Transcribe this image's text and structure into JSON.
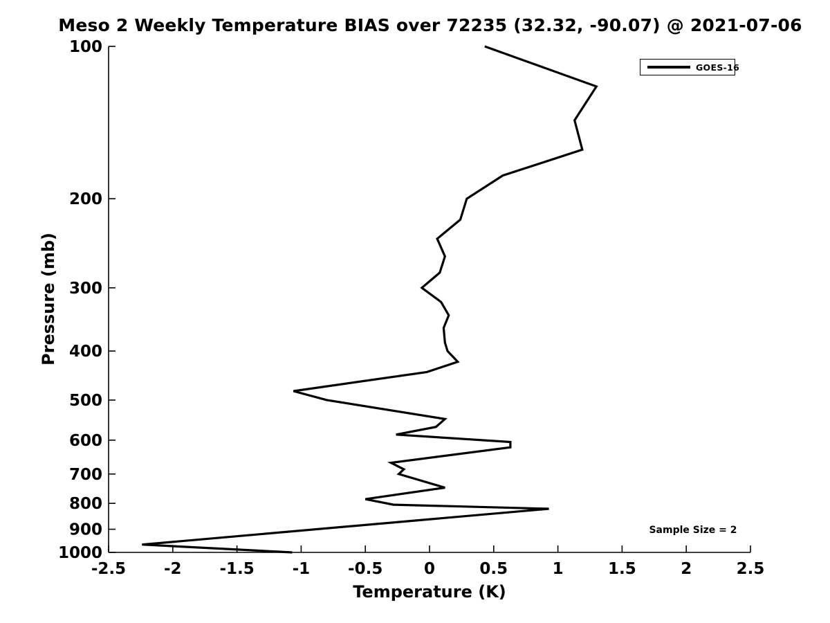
{
  "figure": {
    "background_color": "#ffffff",
    "text_color": "#000000"
  },
  "chart_data": {
    "type": "line",
    "title": "Meso 2 Weekly Temperature BIAS over 72235 (32.32, -90.07) @ 2021-07-06",
    "xlabel": "Temperature (K)",
    "ylabel": "Pressure (mb)",
    "xlim": [
      -2.5,
      2.5
    ],
    "ylim": [
      100,
      1000
    ],
    "y_scale": "log",
    "y_orientation": "inverted (pressure increases downward)",
    "grid": false,
    "axis_color": "#000000",
    "line_color": "#000000",
    "x_ticks": [
      -2.5,
      -2,
      -1.5,
      -1,
      -0.5,
      0,
      0.5,
      1,
      1.5,
      2,
      2.5
    ],
    "x_tick_labels": [
      "-2.5",
      "-2",
      "-1.5",
      "-1",
      "-0.5",
      "0",
      "0.5",
      "1",
      "1.5",
      "2",
      "2.5"
    ],
    "y_ticks": [
      100,
      200,
      300,
      400,
      500,
      600,
      700,
      800,
      900,
      1000
    ],
    "y_tick_labels": [
      "100",
      "200",
      "300",
      "400",
      "500",
      "600",
      "700",
      "800",
      "900",
      "1000"
    ],
    "legend": {
      "position": "top-right",
      "entries": [
        {
          "label": "GOES-16",
          "color": "#000000"
        }
      ]
    },
    "annotation": "Sample Size = 2",
    "series": [
      {
        "name": "GOES-16",
        "color": "#000000",
        "points_format": [
          "temperature_bias_K",
          "pressure_mb"
        ],
        "points": [
          [
            0.43,
            100
          ],
          [
            1.3,
            120
          ],
          [
            1.13,
            140
          ],
          [
            1.19,
            160
          ],
          [
            0.57,
            180
          ],
          [
            0.29,
            200
          ],
          [
            0.24,
            220
          ],
          [
            0.06,
            240
          ],
          [
            0.12,
            260
          ],
          [
            0.08,
            280
          ],
          [
            -0.06,
            300
          ],
          [
            0.09,
            320
          ],
          [
            0.15,
            340
          ],
          [
            0.11,
            360
          ],
          [
            0.12,
            385
          ],
          [
            0.14,
            400
          ],
          [
            0.22,
            420
          ],
          [
            -0.02,
            440
          ],
          [
            -1.06,
            480
          ],
          [
            -0.8,
            500
          ],
          [
            0.12,
            545
          ],
          [
            0.05,
            565
          ],
          [
            -0.26,
            585
          ],
          [
            0.63,
            605
          ],
          [
            0.63,
            620
          ],
          [
            -0.3,
            665
          ],
          [
            -0.2,
            685
          ],
          [
            -0.24,
            700
          ],
          [
            0.12,
            745
          ],
          [
            -0.5,
            785
          ],
          [
            -0.28,
            805
          ],
          [
            0.93,
            820
          ],
          [
            -2.24,
            965
          ],
          [
            -1.07,
            1000
          ]
        ]
      }
    ]
  }
}
